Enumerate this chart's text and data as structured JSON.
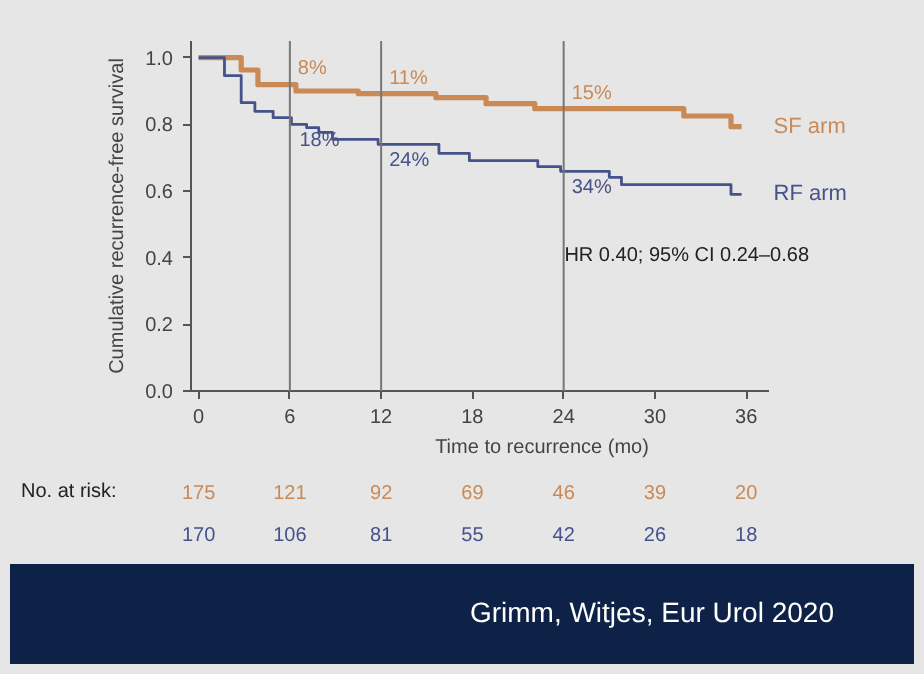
{
  "chart_data": {
    "type": "step",
    "xlabel": "Time to recurrence (mo)",
    "ylabel": "Cumulative recurrence-free survival",
    "xlim": [
      -0.5,
      37.5
    ],
    "ylim": [
      0,
      1.05
    ],
    "xticks": [
      0,
      6,
      12,
      18,
      24,
      30,
      36
    ],
    "yticks": [
      {
        "value": 0,
        "label": "0.0"
      },
      0.2,
      0.4,
      0.6,
      0.8,
      {
        "value": 1,
        "label": "1.0"
      }
    ],
    "legend": false,
    "marker": "none",
    "line_style": "solid",
    "series": [
      {
        "name": "SF arm",
        "color": "#c98a55",
        "x": [
          0,
          2.8,
          3.9,
          6.4,
          10.5,
          15.6,
          18.9,
          22.1,
          31.9,
          35,
          35.7
        ],
        "values": [
          1.0,
          0.963,
          0.919,
          0.9,
          0.892,
          0.88,
          0.862,
          0.847,
          0.825,
          0.793,
          0.793
        ]
      },
      {
        "name": "RF arm",
        "color": "#46528a",
        "x": [
          0,
          1.7,
          2.8,
          3.7,
          4.9,
          6.1,
          7.1,
          7.9,
          8.8,
          11.8,
          15.8,
          17.8,
          22.3,
          23.8,
          27,
          27.8,
          35,
          35.7
        ],
        "values": [
          1.0,
          0.946,
          0.865,
          0.839,
          0.82,
          0.8,
          0.79,
          0.776,
          0.755,
          0.74,
          0.713,
          0.691,
          0.673,
          0.659,
          0.641,
          0.619,
          0.59,
          0.59
        ]
      }
    ],
    "ref_lines": [
      {
        "axis": "x",
        "value": 6,
        "color": "#777777"
      },
      {
        "axis": "x",
        "value": 12,
        "color": "#777777"
      },
      {
        "axis": "x",
        "value": 24,
        "color": "#777777"
      }
    ],
    "annotations": [
      {
        "text": "8%",
        "x": 6,
        "y": 0.92
      },
      {
        "text": "11%",
        "x": 12,
        "y": 0.892
      },
      {
        "text": "15%",
        "x": 24,
        "y": 0.847
      },
      {
        "text": "18%",
        "x": 6.1,
        "y": 0.8
      },
      {
        "text": "24%",
        "x": 12,
        "y": 0.74
      },
      {
        "text": "34%",
        "x": 24,
        "y": 0.659
      },
      "HR 0.40; 95% CI 0.24–0.68",
      "No. at risk:",
      "175",
      "121",
      "92",
      "69",
      "46",
      "39",
      "20",
      "170",
      "106",
      "81",
      "55",
      "42",
      "26",
      "18",
      "Grimm, Witjes, Eur Urol 2020"
    ]
  }
}
